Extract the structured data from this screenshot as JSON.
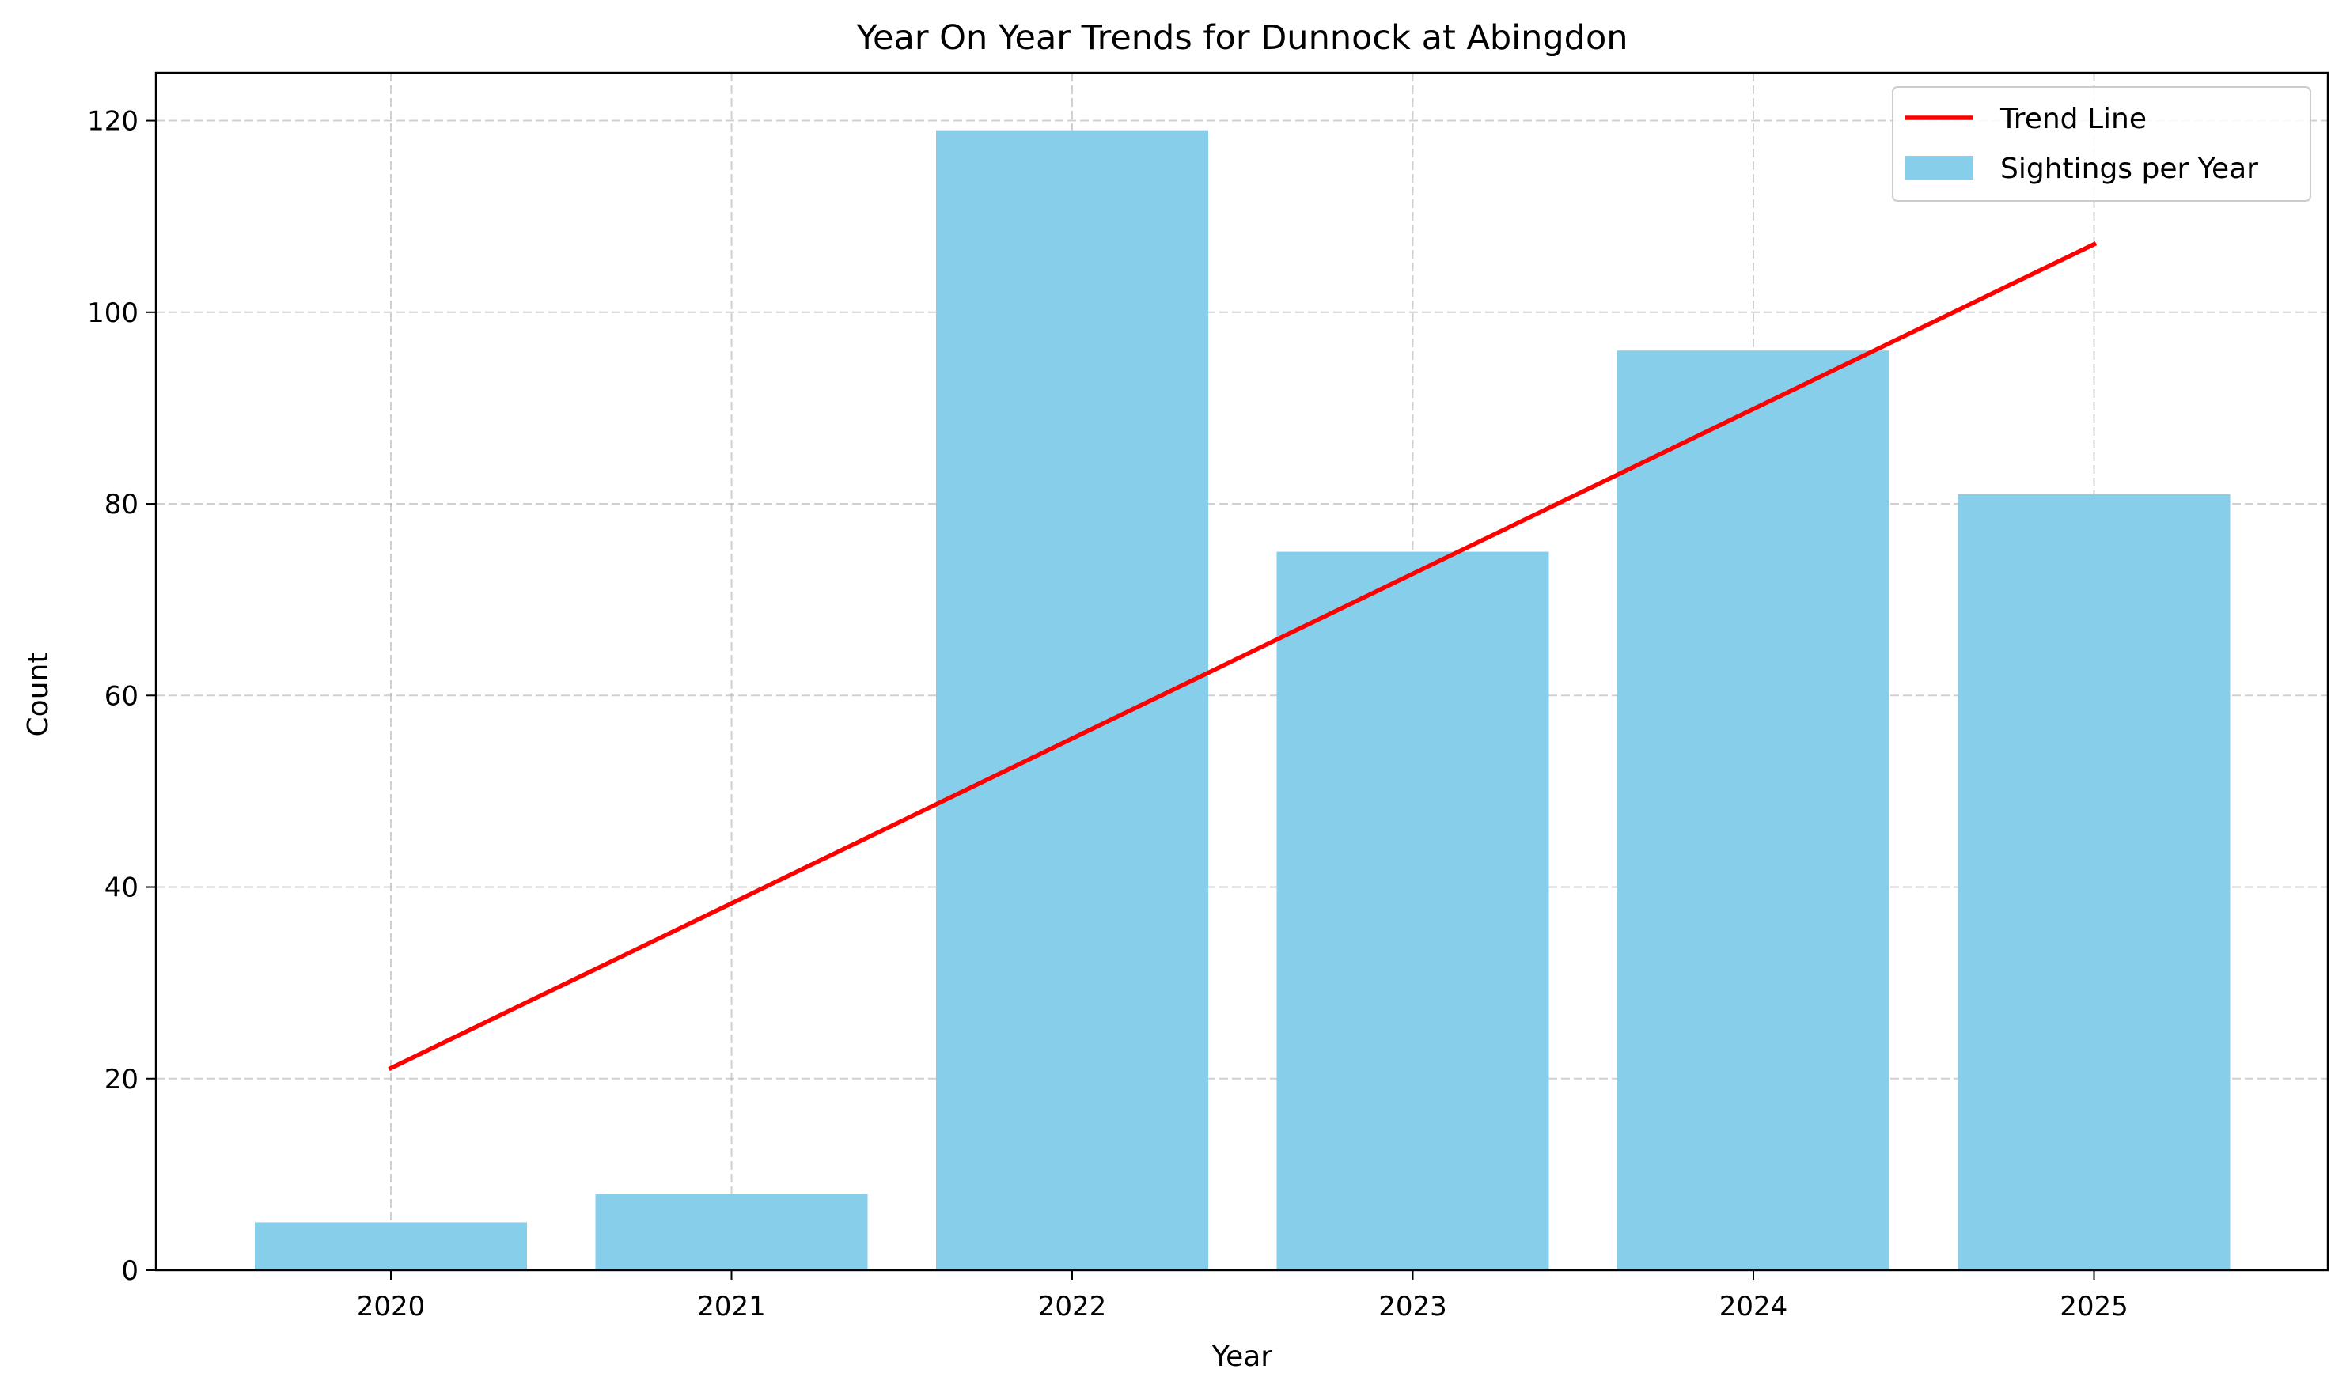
{
  "chart_data": {
    "type": "bar",
    "title": "Year On Year Trends for Dunnock at Abingdon",
    "xlabel": "Year",
    "ylabel": "Count",
    "categories": [
      "2020",
      "2021",
      "2022",
      "2023",
      "2024",
      "2025"
    ],
    "series": [
      {
        "name": "Sightings per Year",
        "type": "bar",
        "values": [
          5,
          8,
          119,
          75,
          96,
          81
        ],
        "color": "#87CEEB"
      },
      {
        "name": "Trend Line",
        "type": "line",
        "values": [
          21.1,
          38.3,
          55.5,
          72.7,
          89.9,
          107.1
        ],
        "color": "#FF0000"
      }
    ],
    "yticks": [
      "0",
      "20",
      "40",
      "60",
      "80",
      "100",
      "120"
    ],
    "ylim": [
      0,
      125
    ],
    "grid": true,
    "legend_position": "top-right",
    "legend": [
      "Trend Line",
      "Sightings per Year"
    ]
  }
}
